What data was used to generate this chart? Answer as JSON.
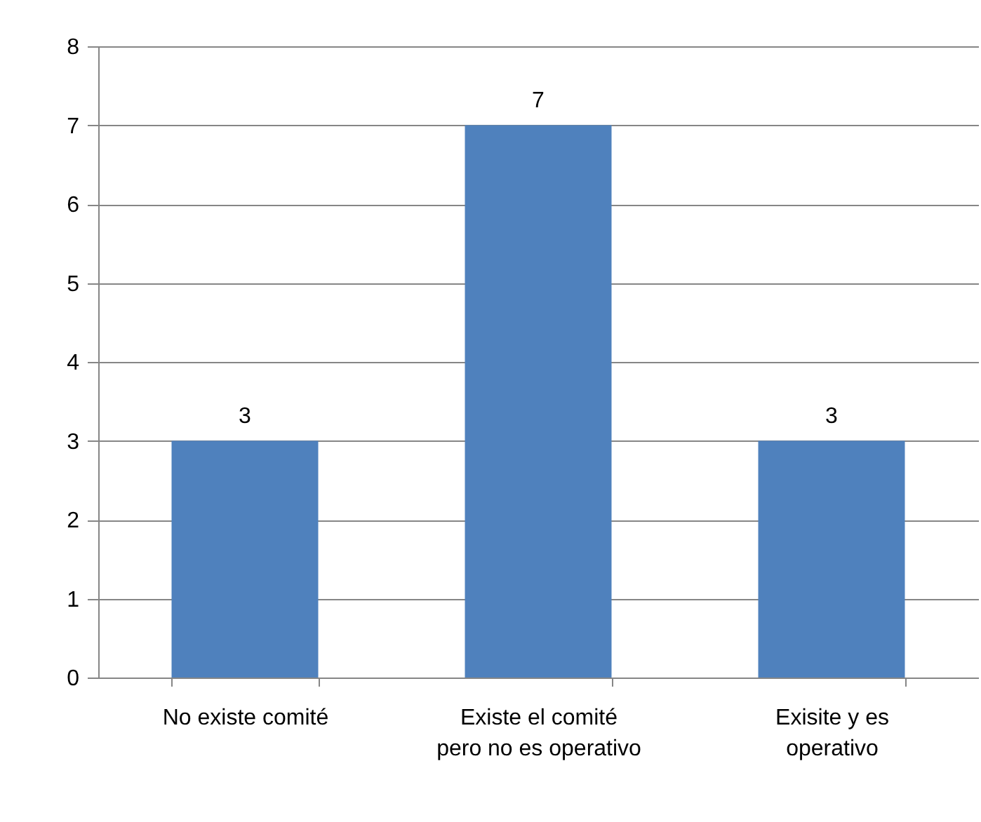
{
  "chart_data": {
    "type": "bar",
    "categories": [
      "No existe comité",
      "Existe el comité pero no es operativo",
      "Exisite y es operativo"
    ],
    "values": [
      3,
      7,
      3
    ],
    "color": "#4f81bd",
    "ylim": [
      0,
      8
    ],
    "yticks": [
      0,
      1,
      2,
      3,
      4,
      5,
      6,
      7,
      8
    ],
    "grid": "y",
    "data_labels": true
  }
}
